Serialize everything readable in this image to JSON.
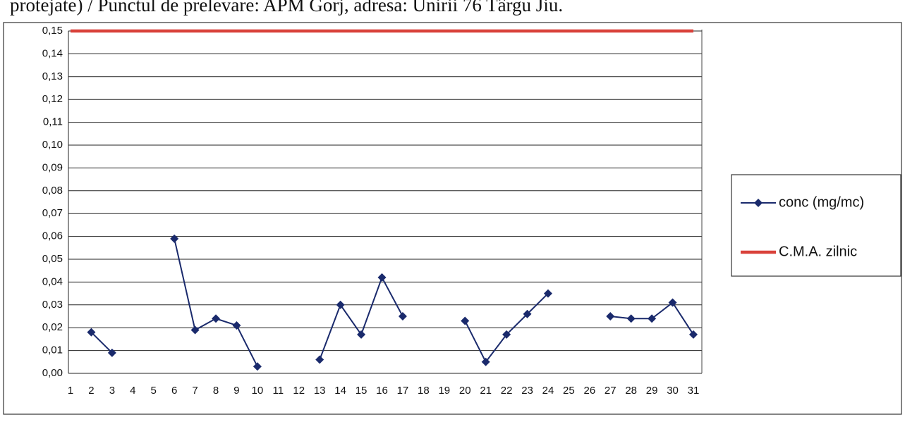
{
  "heading": "protejate) / Punctul de prelevare: APM  Gorj, adresa: Unirii 76 Târgu Jiu.",
  "chart_data": {
    "type": "line",
    "categories": [
      "1",
      "2",
      "3",
      "4",
      "5",
      "6",
      "7",
      "8",
      "9",
      "10",
      "11",
      "12",
      "13",
      "14",
      "15",
      "16",
      "17",
      "18",
      "19",
      "20",
      "21",
      "22",
      "23",
      "24",
      "25",
      "26",
      "27",
      "28",
      "29",
      "30",
      "31"
    ],
    "series": [
      {
        "name": "conc (mg/mc)",
        "color": "#1a2a6c",
        "marker": "diamond",
        "values": [
          null,
          0.018,
          0.009,
          null,
          null,
          0.059,
          0.019,
          0.024,
          0.021,
          0.003,
          null,
          null,
          0.006,
          0.03,
          0.017,
          0.042,
          0.025,
          null,
          null,
          0.023,
          0.005,
          0.017,
          0.026,
          0.035,
          null,
          null,
          0.025,
          0.024,
          0.024,
          0.031,
          0.017
        ]
      },
      {
        "name": "C.M.A. zilnic",
        "color": "#d9413a",
        "values": [
          0.15,
          0.15,
          0.15,
          0.15,
          0.15,
          0.15,
          0.15,
          0.15,
          0.15,
          0.15,
          0.15,
          0.15,
          0.15,
          0.15,
          0.15,
          0.15,
          0.15,
          0.15,
          0.15,
          0.15,
          0.15,
          0.15,
          0.15,
          0.15,
          0.15,
          0.15,
          0.15,
          0.15,
          0.15,
          0.15,
          0.15
        ]
      }
    ],
    "ylim": [
      0,
      0.15
    ],
    "yticks": [
      {
        "value": 0,
        "label": "0,00"
      },
      {
        "value": 0.01,
        "label": "0,01"
      },
      {
        "value": 0.02,
        "label": "0,02"
      },
      {
        "value": 0.03,
        "label": "0,03"
      },
      {
        "value": 0.04,
        "label": "0,04"
      },
      {
        "value": 0.05,
        "label": "0,05"
      },
      {
        "value": 0.06,
        "label": "0,06"
      },
      {
        "value": 0.07,
        "label": "0,07"
      },
      {
        "value": 0.08,
        "label": "0,08"
      },
      {
        "value": 0.09,
        "label": "0,09"
      },
      {
        "value": 0.1,
        "label": "0,10"
      },
      {
        "value": 0.11,
        "label": "0,11"
      },
      {
        "value": 0.12,
        "label": "0,12"
      },
      {
        "value": 0.13,
        "label": "0,13"
      },
      {
        "value": 0.14,
        "label": "0,14"
      },
      {
        "value": 0.15,
        "label": "0,15"
      }
    ],
    "grid": true,
    "legend": "right"
  }
}
